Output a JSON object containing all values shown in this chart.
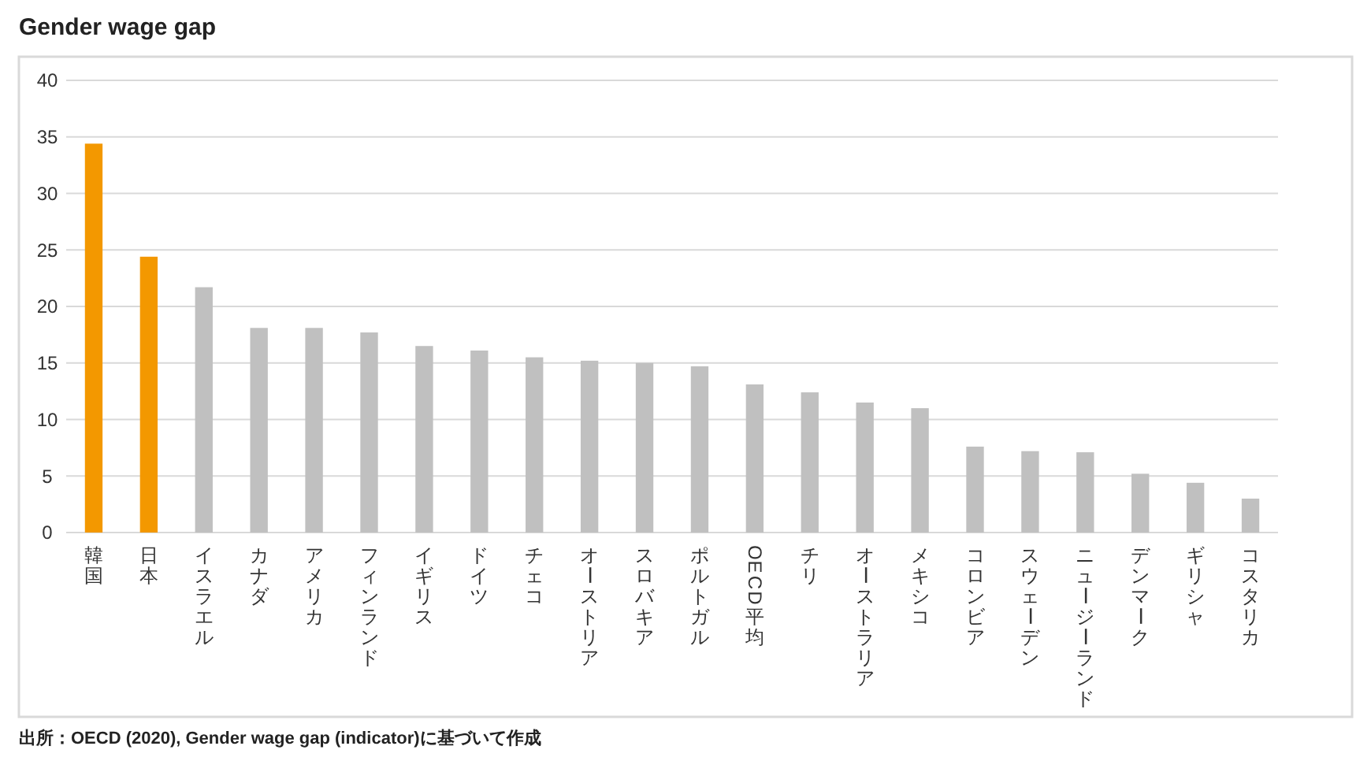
{
  "chart_data": {
    "type": "bar",
    "title": "Gender wage gap",
    "categories": [
      "韓国",
      "日本",
      "イスラエル",
      "カナダ",
      "アメリカ",
      "フィンランド",
      "イギリス",
      "ドイツ",
      "チェコ",
      "オーストリア",
      "スロバキア",
      "ポルトガル",
      "OECD平均",
      "チリ",
      "オーストラリア",
      "メキシコ",
      "コロンビア",
      "スウェーデン",
      "ニュージーランド",
      "デンマーク",
      "ギリシャ",
      "コスタリカ"
    ],
    "values": [
      34.4,
      24.4,
      21.7,
      18.1,
      18.1,
      17.7,
      16.5,
      16.1,
      15.5,
      15.2,
      15.0,
      14.7,
      13.1,
      12.4,
      11.5,
      11.0,
      7.6,
      7.2,
      7.1,
      5.2,
      4.4,
      3.0
    ],
    "colors": [
      "#f39800",
      "#f39800",
      "#c0c0c0",
      "#c0c0c0",
      "#c0c0c0",
      "#c0c0c0",
      "#c0c0c0",
      "#c0c0c0",
      "#c0c0c0",
      "#c0c0c0",
      "#c0c0c0",
      "#c0c0c0",
      "#c0c0c0",
      "#c0c0c0",
      "#c0c0c0",
      "#c0c0c0",
      "#c0c0c0",
      "#c0c0c0",
      "#c0c0c0",
      "#c0c0c0",
      "#c0c0c0",
      "#c0c0c0"
    ],
    "ylim": [
      0,
      40
    ],
    "yticks": [
      0,
      5,
      10,
      15,
      20,
      25,
      30,
      35,
      40
    ],
    "grid": "y",
    "annotations": [
      "出所：OECD (2020), Gender wage gap (indicator)に基づいて作成"
    ]
  }
}
